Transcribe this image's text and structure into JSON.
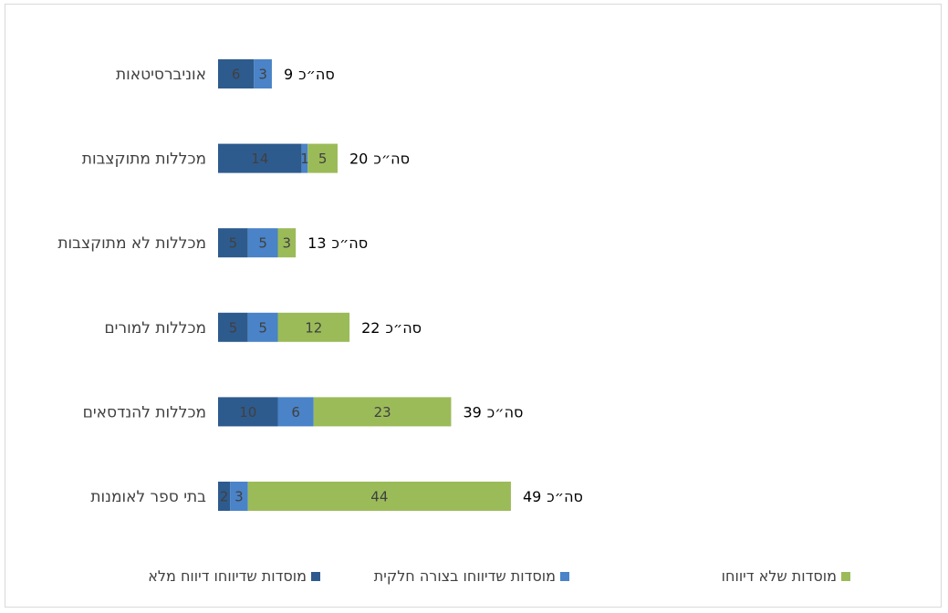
{
  "colors": {
    "full": "#2e5b8e",
    "partial": "#4a83c7",
    "none": "#9bbb59",
    "label": "#404040",
    "frame": "#d9d9d9"
  },
  "chart_data": {
    "type": "bar",
    "orientation": "horizontal",
    "stacked": true,
    "title": "",
    "xlabel": "",
    "ylabel": "",
    "grid": false,
    "legend_position": "bottom",
    "total_prefix": "סה״כ",
    "categories": [
      "אוניברסיטאות",
      "מכללות מתוקצבות",
      "מכללות לא מתוקצבות",
      "מכללות למורים",
      "מכללות להנדסאים",
      "בתי ספר לאומנות"
    ],
    "totals": [
      9,
      20,
      13,
      22,
      39,
      49
    ],
    "series": [
      {
        "name": "מוסדות שדיווחו דיווח מלא",
        "key": "full",
        "values": [
          6,
          14,
          5,
          5,
          10,
          2
        ]
      },
      {
        "name": "מוסדות שדיווחו בצורה חלקית",
        "key": "partial",
        "values": [
          3,
          1,
          5,
          5,
          6,
          3
        ]
      },
      {
        "name": "מוסדות שלא דיווחו",
        "key": "none",
        "values": [
          0,
          5,
          3,
          12,
          23,
          44
        ]
      }
    ]
  }
}
